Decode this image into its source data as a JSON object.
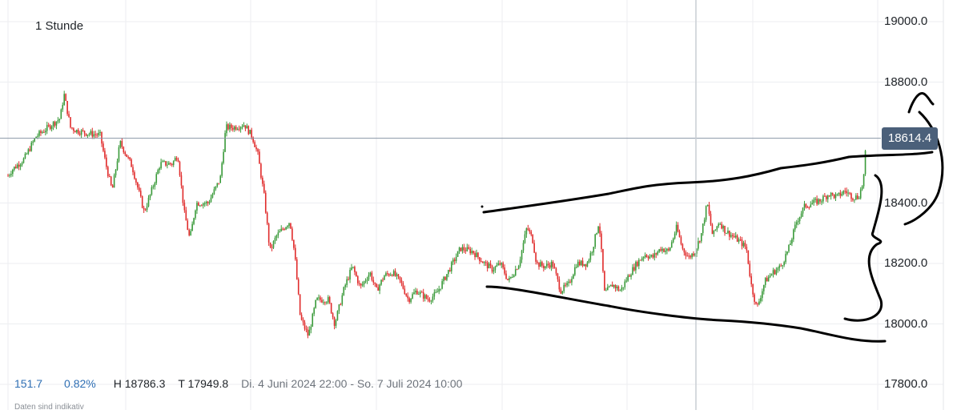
{
  "header": {
    "interval": "1 Stunde"
  },
  "stats": {
    "change": "151.7",
    "change_pct": "0.82%",
    "high": "H 18786.3",
    "low": "T 17949.8",
    "range": "Di. 4 Juni 2024 22:00 - So. 7 Juli 2024 10:00"
  },
  "disclaimer": "Daten sind indikativ",
  "current_price": "18614.4",
  "colors": {
    "up": "#3a9a3a",
    "down": "#e02b2b",
    "grid": "#eceef1",
    "price_line": "#8a97a6",
    "badge": "#4b607a",
    "annotation": "#000000"
  },
  "chart_data": {
    "type": "candlestick",
    "title": "",
    "xlabel": "",
    "ylabel": "",
    "ylim": [
      17780,
      19030
    ],
    "y_ticks": [
      "19000.0",
      "18800.0",
      "18400.0",
      "18200.0",
      "18000.0",
      "17800.0"
    ],
    "y_tick_values": [
      19000,
      18800,
      18400,
      18200,
      18000,
      17800
    ],
    "current": 18614.4,
    "high": 18786.3,
    "low": 17949.8,
    "path": [
      [
        0,
        18450
      ],
      [
        15,
        18510
      ],
      [
        30,
        18545
      ],
      [
        45,
        18620
      ],
      [
        60,
        18650
      ],
      [
        75,
        18680
      ],
      [
        80,
        18760
      ],
      [
        88,
        18650
      ],
      [
        95,
        18640
      ],
      [
        110,
        18630
      ],
      [
        125,
        18625
      ],
      [
        132,
        18530
      ],
      [
        140,
        18440
      ],
      [
        150,
        18600
      ],
      [
        165,
        18520
      ],
      [
        175,
        18420
      ],
      [
        180,
        18370
      ],
      [
        188,
        18430
      ],
      [
        200,
        18530
      ],
      [
        215,
        18530
      ],
      [
        222,
        18560
      ],
      [
        230,
        18370
      ],
      [
        237,
        18280
      ],
      [
        245,
        18400
      ],
      [
        260,
        18400
      ],
      [
        275,
        18480
      ],
      [
        282,
        18650
      ],
      [
        292,
        18650
      ],
      [
        305,
        18660
      ],
      [
        315,
        18620
      ],
      [
        322,
        18560
      ],
      [
        330,
        18420
      ],
      [
        337,
        18240
      ],
      [
        345,
        18290
      ],
      [
        362,
        18340
      ],
      [
        368,
        18230
      ],
      [
        375,
        18020
      ],
      [
        385,
        17960
      ],
      [
        395,
        18080
      ],
      [
        410,
        18080
      ],
      [
        418,
        18000
      ],
      [
        430,
        18120
      ],
      [
        440,
        18190
      ],
      [
        450,
        18120
      ],
      [
        462,
        18170
      ],
      [
        470,
        18110
      ],
      [
        480,
        18160
      ],
      [
        490,
        18170
      ],
      [
        500,
        18140
      ],
      [
        510,
        18080
      ],
      [
        520,
        18110
      ],
      [
        535,
        18080
      ],
      [
        545,
        18100
      ],
      [
        555,
        18150
      ],
      [
        565,
        18200
      ],
      [
        575,
        18250
      ],
      [
        590,
        18240
      ],
      [
        605,
        18200
      ],
      [
        615,
        18180
      ],
      [
        625,
        18200
      ],
      [
        635,
        18140
      ],
      [
        648,
        18200
      ],
      [
        658,
        18320
      ],
      [
        665,
        18280
      ],
      [
        670,
        18200
      ],
      [
        680,
        18190
      ],
      [
        690,
        18200
      ],
      [
        700,
        18110
      ],
      [
        710,
        18130
      ],
      [
        720,
        18200
      ],
      [
        733,
        18200
      ],
      [
        740,
        18250
      ],
      [
        748,
        18340
      ],
      [
        755,
        18100
      ],
      [
        765,
        18130
      ],
      [
        775,
        18110
      ],
      [
        785,
        18160
      ],
      [
        795,
        18200
      ],
      [
        805,
        18230
      ],
      [
        815,
        18220
      ],
      [
        825,
        18250
      ],
      [
        835,
        18240
      ],
      [
        845,
        18320
      ],
      [
        852,
        18250
      ],
      [
        860,
        18220
      ],
      [
        868,
        18240
      ],
      [
        876,
        18300
      ],
      [
        883,
        18400
      ],
      [
        890,
        18290
      ],
      [
        898,
        18340
      ],
      [
        905,
        18310
      ],
      [
        915,
        18290
      ],
      [
        925,
        18270
      ],
      [
        932,
        18250
      ],
      [
        938,
        18130
      ],
      [
        945,
        18050
      ],
      [
        955,
        18140
      ],
      [
        965,
        18170
      ],
      [
        975,
        18190
      ],
      [
        985,
        18250
      ],
      [
        995,
        18340
      ],
      [
        1005,
        18390
      ],
      [
        1015,
        18400
      ],
      [
        1025,
        18410
      ],
      [
        1035,
        18430
      ],
      [
        1045,
        18420
      ],
      [
        1055,
        18440
      ],
      [
        1065,
        18420
      ],
      [
        1072,
        18420
      ],
      [
        1078,
        18470
      ],
      [
        1082,
        18614
      ]
    ]
  }
}
